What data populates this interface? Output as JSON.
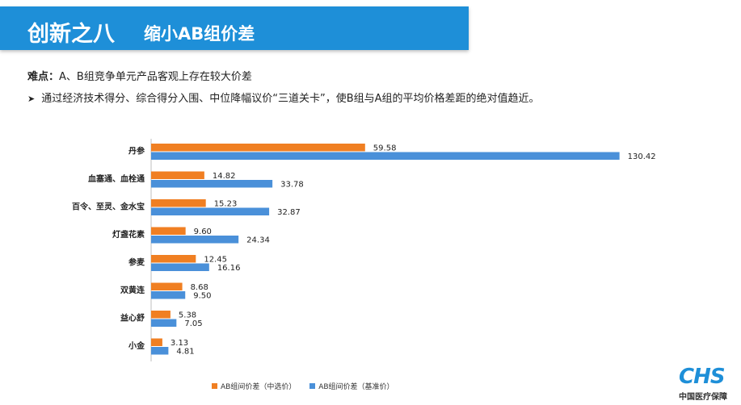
{
  "header": {
    "title": "创新之八",
    "subtitle": "缩小AB组价差"
  },
  "difficulty": {
    "label": "难点：",
    "text": "A、B组竞争单元产品客观上存在较大价差"
  },
  "bullet": {
    "text": "通过经济技术得分、综合得分入围、中位降幅议价“三道关卡”，使B组与A组的平均价格差距的绝对值趋近。"
  },
  "chart_data": {
    "type": "bar",
    "orientation": "horizontal",
    "categories": [
      "丹参",
      "血塞通、血栓通",
      "百令、至灵、金水宝",
      "灯盏花素",
      "参麦",
      "双黄连",
      "益心舒",
      "小金"
    ],
    "series": [
      {
        "name": "AB组间价差（中选价）",
        "color": "#f07f22",
        "values": [
          59.58,
          14.82,
          15.23,
          9.6,
          12.45,
          8.68,
          5.38,
          3.13
        ]
      },
      {
        "name": "AB组间价差（基准价）",
        "color": "#4a90d9",
        "values": [
          130.42,
          33.78,
          32.87,
          24.34,
          16.16,
          9.5,
          7.05,
          4.81
        ]
      }
    ],
    "legend": "bottom",
    "grid": false,
    "xlim": [
      0,
      135
    ]
  },
  "logo": {
    "mark": "CHS",
    "text": "中国医疗保障"
  }
}
